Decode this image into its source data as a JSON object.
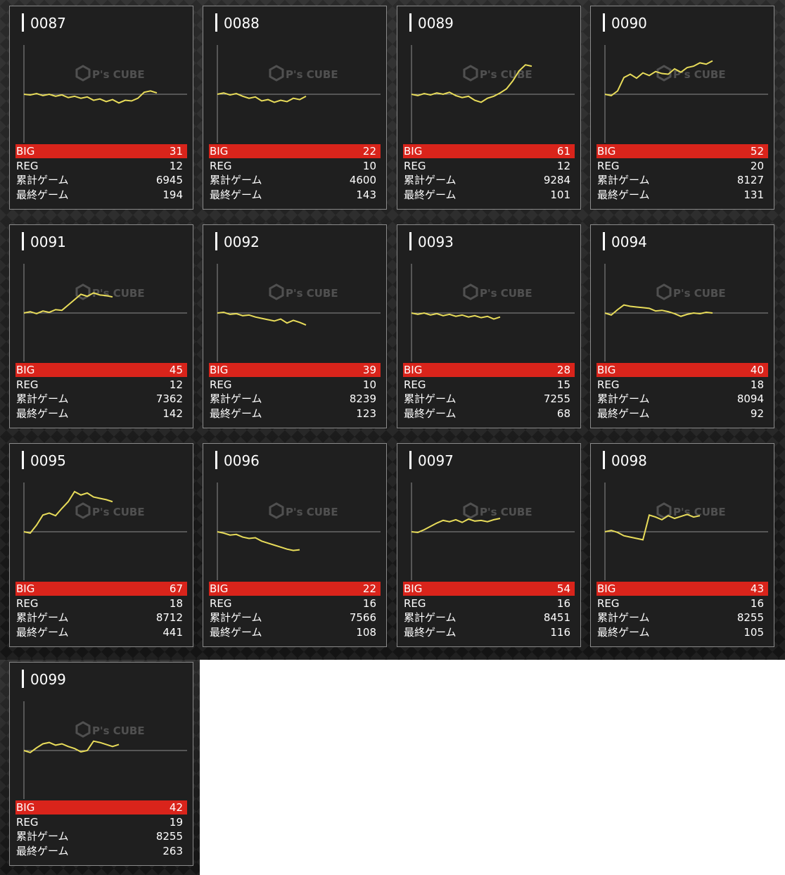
{
  "labels": {
    "big": "BIG",
    "reg": "REG",
    "total": "累計ゲーム",
    "last": "最終ゲーム"
  },
  "watermark": {
    "brand": "P's CUBE"
  },
  "colors": {
    "line": "#e8dc5a",
    "big_bar": "#d9241b",
    "baseline": "#8c8c8c"
  },
  "machines": [
    {
      "id": "0087",
      "big": "31",
      "reg": "12",
      "total": "6945",
      "last": "194",
      "trend": [
        0,
        -1,
        1,
        -2,
        0,
        -3,
        -1,
        -5,
        -3,
        -6,
        -4,
        -9,
        -7,
        -11,
        -8,
        -13,
        -9,
        -10,
        -6,
        3,
        5,
        2
      ]
    },
    {
      "id": "0088",
      "big": "22",
      "reg": "10",
      "total": "4600",
      "last": "143",
      "trend": [
        0,
        2,
        -1,
        1,
        -3,
        -6,
        -4,
        -10,
        -8,
        -12,
        -9,
        -11,
        -6,
        -8,
        -3
      ]
    },
    {
      "id": "0089",
      "big": "61",
      "reg": "12",
      "total": "9284",
      "last": "101",
      "trend": [
        0,
        -2,
        1,
        -1,
        2,
        0,
        3,
        -2,
        -5,
        -3,
        -9,
        -12,
        -6,
        -3,
        2,
        8,
        20,
        35,
        44,
        42
      ]
    },
    {
      "id": "0090",
      "big": "52",
      "reg": "20",
      "total": "8127",
      "last": "131",
      "trend": [
        0,
        -2,
        5,
        25,
        30,
        24,
        32,
        28,
        34,
        31,
        30,
        38,
        33,
        40,
        42,
        47,
        45,
        50
      ]
    },
    {
      "id": "0091",
      "big": "45",
      "reg": "12",
      "total": "7362",
      "last": "142",
      "trend": [
        0,
        2,
        -1,
        3,
        1,
        5,
        4,
        12,
        20,
        28,
        25,
        30,
        27,
        26,
        24
      ]
    },
    {
      "id": "0092",
      "big": "39",
      "reg": "10",
      "total": "8239",
      "last": "123",
      "trend": [
        0,
        1,
        -2,
        -1,
        -4,
        -3,
        -6,
        -8,
        -10,
        -12,
        -9,
        -15,
        -11,
        -14,
        -18
      ]
    },
    {
      "id": "0093",
      "big": "28",
      "reg": "15",
      "total": "7255",
      "last": "68",
      "trend": [
        0,
        -2,
        0,
        -3,
        -1,
        -4,
        -2,
        -5,
        -3,
        -6,
        -4,
        -7,
        -5,
        -9,
        -6
      ]
    },
    {
      "id": "0094",
      "big": "40",
      "reg": "18",
      "total": "8094",
      "last": "92",
      "trend": [
        0,
        -3,
        5,
        12,
        10,
        9,
        8,
        7,
        3,
        4,
        2,
        -1,
        -5,
        -2,
        0,
        -1,
        1,
        0
      ]
    },
    {
      "id": "0095",
      "big": "67",
      "reg": "18",
      "total": "8712",
      "last": "441",
      "trend": [
        0,
        -2,
        10,
        25,
        28,
        24,
        35,
        45,
        60,
        55,
        58,
        52,
        50,
        48,
        45
      ]
    },
    {
      "id": "0096",
      "big": "22",
      "reg": "16",
      "total": "7566",
      "last": "108",
      "trend": [
        0,
        -2,
        -5,
        -4,
        -8,
        -10,
        -9,
        -14,
        -17,
        -20,
        -23,
        -26,
        -28,
        -27
      ]
    },
    {
      "id": "0097",
      "big": "54",
      "reg": "16",
      "total": "8451",
      "last": "116",
      "trend": [
        0,
        -1,
        3,
        8,
        13,
        17,
        15,
        18,
        14,
        19,
        16,
        17,
        15,
        18,
        20
      ]
    },
    {
      "id": "0098",
      "big": "43",
      "reg": "16",
      "total": "8255",
      "last": "105",
      "trend": [
        0,
        2,
        -1,
        -6,
        -8,
        -10,
        -12,
        25,
        22,
        18,
        24,
        20,
        23,
        26,
        22,
        24
      ]
    },
    {
      "id": "0099",
      "big": "42",
      "reg": "19",
      "total": "8255",
      "last": "263",
      "trend": [
        0,
        -3,
        4,
        10,
        12,
        8,
        10,
        6,
        3,
        -2,
        0,
        14,
        12,
        9,
        6,
        9
      ]
    }
  ]
}
